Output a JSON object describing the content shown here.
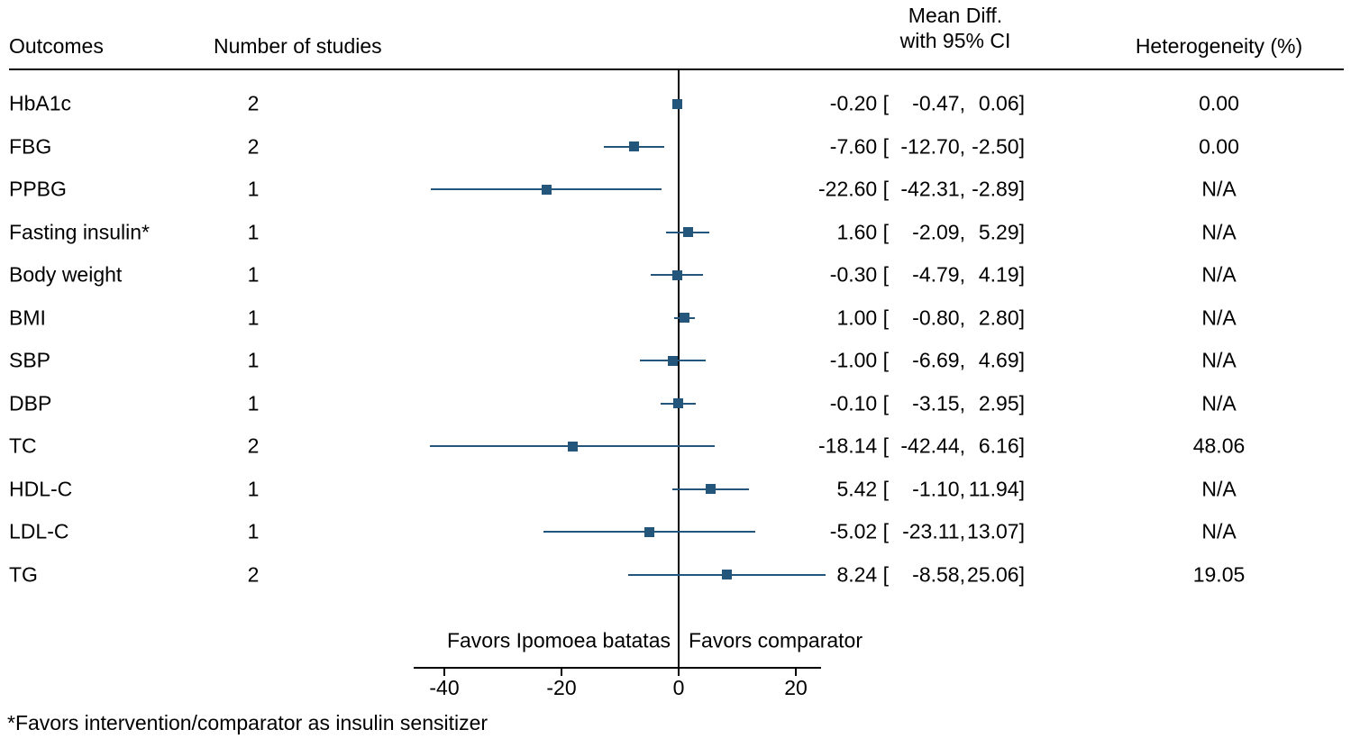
{
  "colors": {
    "marker": "#24557b",
    "ci_line": "#24557b",
    "axis": "#000000",
    "text": "#000000",
    "background": "#ffffff"
  },
  "header": {
    "outcomes": "Outcomes",
    "num_studies": "Number of studies",
    "mean_diff_line1": "Mean Diff.",
    "mean_diff_line2": "with 95% CI",
    "heterogeneity": "Heterogeneity (%)"
  },
  "footer": {
    "favors_left": "Favors Ipomoea batatas",
    "favors_right": "Favors comparator",
    "footnote": "*Favors intervention/comparator as insulin sensitizer"
  },
  "chart_data": {
    "type": "forest",
    "title": "",
    "xlabel": "",
    "x_ticks": [
      -40,
      -20,
      0,
      20
    ],
    "xlim": [
      -45,
      25
    ],
    "zero_line": 0,
    "legend": null,
    "rows": [
      {
        "outcome": "HbA1c",
        "n_studies": 2,
        "mean": -0.2,
        "ci_low": -0.47,
        "ci_high": 0.06,
        "heterogeneity": "0.00"
      },
      {
        "outcome": "FBG",
        "n_studies": 2,
        "mean": -7.6,
        "ci_low": -12.7,
        "ci_high": -2.5,
        "heterogeneity": "0.00"
      },
      {
        "outcome": "PPBG",
        "n_studies": 1,
        "mean": -22.6,
        "ci_low": -42.31,
        "ci_high": -2.89,
        "heterogeneity": "N/A"
      },
      {
        "outcome": "Fasting insulin*",
        "n_studies": 1,
        "mean": 1.6,
        "ci_low": -2.09,
        "ci_high": 5.29,
        "heterogeneity": "N/A"
      },
      {
        "outcome": "Body weight",
        "n_studies": 1,
        "mean": -0.3,
        "ci_low": -4.79,
        "ci_high": 4.19,
        "heterogeneity": "N/A"
      },
      {
        "outcome": "BMI",
        "n_studies": 1,
        "mean": 1.0,
        "ci_low": -0.8,
        "ci_high": 2.8,
        "heterogeneity": "N/A"
      },
      {
        "outcome": "SBP",
        "n_studies": 1,
        "mean": -1.0,
        "ci_low": -6.69,
        "ci_high": 4.69,
        "heterogeneity": "N/A"
      },
      {
        "outcome": "DBP",
        "n_studies": 1,
        "mean": -0.1,
        "ci_low": -3.15,
        "ci_high": 2.95,
        "heterogeneity": "N/A"
      },
      {
        "outcome": "TC",
        "n_studies": 2,
        "mean": -18.14,
        "ci_low": -42.44,
        "ci_high": 6.16,
        "heterogeneity": "48.06"
      },
      {
        "outcome": "HDL-C",
        "n_studies": 1,
        "mean": 5.42,
        "ci_low": -1.1,
        "ci_high": 11.94,
        "heterogeneity": "N/A"
      },
      {
        "outcome": "LDL-C",
        "n_studies": 1,
        "mean": -5.02,
        "ci_low": -23.11,
        "ci_high": 13.07,
        "heterogeneity": "N/A"
      },
      {
        "outcome": "TG",
        "n_studies": 2,
        "mean": 8.24,
        "ci_low": -8.58,
        "ci_high": 25.06,
        "heterogeneity": "19.05"
      }
    ]
  }
}
